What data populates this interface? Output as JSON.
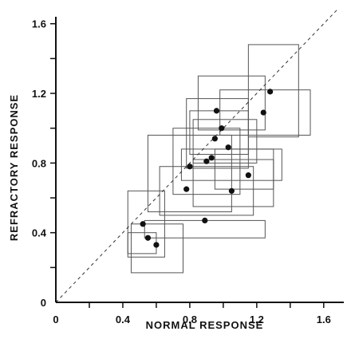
{
  "chart_data": {
    "type": "scatter",
    "xlabel": "NORMAL   RESPONSE",
    "ylabel": "REFRACTORY   RESPONSE",
    "xlim": [
      0,
      1.72
    ],
    "ylim": [
      0,
      1.64
    ],
    "x_ticks": [
      0,
      0.4,
      0.8,
      1.2,
      1.6
    ],
    "x_tick_labels": [
      "0",
      "0.4",
      "0.8",
      "1.2",
      "1.6"
    ],
    "y_ticks": [
      0,
      0.4,
      0.8,
      1.2,
      1.6
    ],
    "y_tick_labels": [
      "0",
      "0.4",
      "0.8",
      "1.2",
      "1.6"
    ],
    "minor_tick_step": 0.2,
    "reference_line": {
      "style": "dashed",
      "from": [
        0,
        0
      ],
      "to": [
        1.68,
        1.68
      ]
    },
    "grid": false,
    "legend": "none",
    "colors": {
      "ink": "#111111",
      "box": "#555555"
    },
    "points": [
      {
        "x": 0.52,
        "y": 0.45,
        "x_range": [
          0.43,
          0.65
        ],
        "y_range": [
          0.26,
          0.64
        ]
      },
      {
        "x": 0.55,
        "y": 0.37,
        "x_range": [
          0.45,
          0.76
        ],
        "y_range": [
          0.17,
          0.45
        ]
      },
      {
        "x": 0.6,
        "y": 0.33,
        "x_range": [
          0.43,
          0.6
        ],
        "y_range": [
          0.28,
          0.4
        ]
      },
      {
        "x": 0.89,
        "y": 0.47,
        "x_range": [
          0.53,
          1.25
        ],
        "y_range": [
          0.37,
          0.47
        ]
      },
      {
        "x": 0.8,
        "y": 0.78,
        "x_range": [
          0.55,
          1.05
        ],
        "y_range": [
          0.52,
          0.96
        ]
      },
      {
        "x": 0.78,
        "y": 0.65,
        "x_range": [
          0.62,
          1.18
        ],
        "y_range": [
          0.5,
          0.78
        ]
      },
      {
        "x": 0.9,
        "y": 0.81,
        "x_range": [
          0.7,
          1.1
        ],
        "y_range": [
          0.62,
          1.0
        ]
      },
      {
        "x": 0.93,
        "y": 0.83,
        "x_range": [
          0.75,
          1.35
        ],
        "y_range": [
          0.7,
          0.88
        ]
      },
      {
        "x": 0.95,
        "y": 0.94,
        "x_range": [
          0.78,
          1.15
        ],
        "y_range": [
          0.77,
          1.17
        ]
      },
      {
        "x": 0.96,
        "y": 1.1,
        "x_range": [
          0.85,
          1.25
        ],
        "y_range": [
          0.99,
          1.3
        ]
      },
      {
        "x": 0.99,
        "y": 1.0,
        "x_range": [
          0.8,
          1.15
        ],
        "y_range": [
          0.85,
          1.1
        ]
      },
      {
        "x": 1.03,
        "y": 0.89,
        "x_range": [
          0.82,
          1.2
        ],
        "y_range": [
          0.8,
          1.05
        ]
      },
      {
        "x": 1.05,
        "y": 0.64,
        "x_range": [
          0.82,
          1.3
        ],
        "y_range": [
          0.55,
          0.82
        ]
      },
      {
        "x": 1.15,
        "y": 0.73,
        "x_range": [
          0.95,
          1.3
        ],
        "y_range": [
          0.65,
          0.88
        ]
      },
      {
        "x": 1.24,
        "y": 1.09,
        "x_range": [
          0.98,
          1.52
        ],
        "y_range": [
          0.96,
          1.22
        ]
      },
      {
        "x": 1.28,
        "y": 1.21,
        "x_range": [
          1.15,
          1.45
        ],
        "y_range": [
          0.95,
          1.48
        ]
      }
    ]
  }
}
